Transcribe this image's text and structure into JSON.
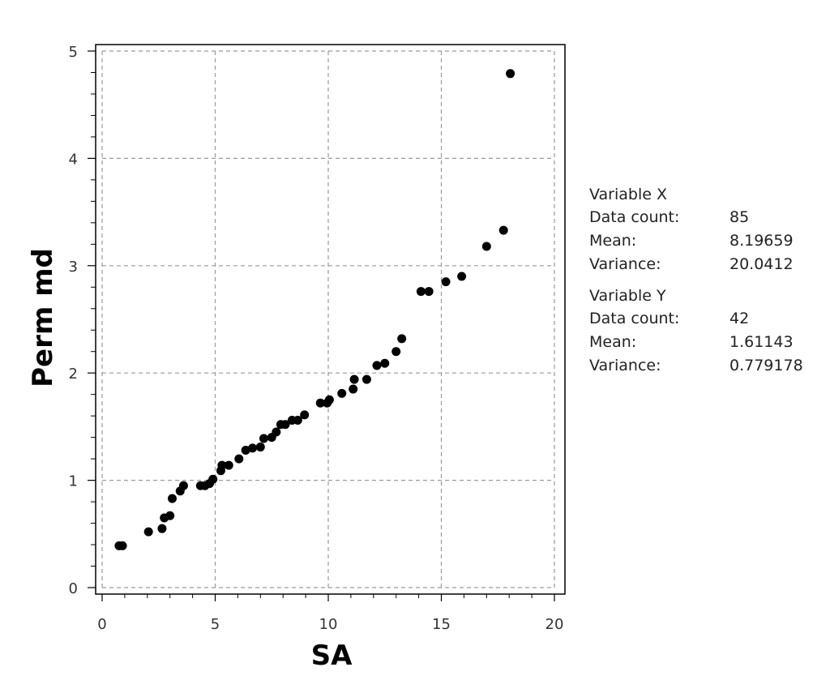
{
  "chart_data": {
    "type": "scatter",
    "xlabel": "SA",
    "ylabel": "Perm md",
    "xlim": [
      0,
      20
    ],
    "ylim": [
      0,
      5
    ],
    "x_ticks": [
      "0",
      "5",
      "10",
      "15",
      "20"
    ],
    "y_ticks": [
      "0",
      "1",
      "2",
      "3",
      "4",
      "5"
    ],
    "grid": true,
    "points": [
      {
        "x": 0.75,
        "y": 0.39
      },
      {
        "x": 0.9,
        "y": 0.39
      },
      {
        "x": 2.05,
        "y": 0.52
      },
      {
        "x": 2.65,
        "y": 0.55
      },
      {
        "x": 2.75,
        "y": 0.65
      },
      {
        "x": 3.0,
        "y": 0.67
      },
      {
        "x": 3.1,
        "y": 0.83
      },
      {
        "x": 3.45,
        "y": 0.9
      },
      {
        "x": 3.6,
        "y": 0.95
      },
      {
        "x": 4.35,
        "y": 0.95
      },
      {
        "x": 4.55,
        "y": 0.95
      },
      {
        "x": 4.75,
        "y": 0.97
      },
      {
        "x": 4.9,
        "y": 1.01
      },
      {
        "x": 5.25,
        "y": 1.09
      },
      {
        "x": 5.3,
        "y": 1.14
      },
      {
        "x": 5.6,
        "y": 1.14
      },
      {
        "x": 6.05,
        "y": 1.2
      },
      {
        "x": 6.35,
        "y": 1.28
      },
      {
        "x": 6.65,
        "y": 1.3
      },
      {
        "x": 7.0,
        "y": 1.31
      },
      {
        "x": 7.15,
        "y": 1.39
      },
      {
        "x": 7.5,
        "y": 1.4
      },
      {
        "x": 7.7,
        "y": 1.45
      },
      {
        "x": 7.9,
        "y": 1.52
      },
      {
        "x": 8.1,
        "y": 1.52
      },
      {
        "x": 8.4,
        "y": 1.56
      },
      {
        "x": 8.65,
        "y": 1.56
      },
      {
        "x": 8.95,
        "y": 1.61
      },
      {
        "x": 9.65,
        "y": 1.72
      },
      {
        "x": 9.95,
        "y": 1.72
      },
      {
        "x": 10.05,
        "y": 1.75
      },
      {
        "x": 10.6,
        "y": 1.81
      },
      {
        "x": 11.1,
        "y": 1.85
      },
      {
        "x": 11.15,
        "y": 1.94
      },
      {
        "x": 11.7,
        "y": 1.94
      },
      {
        "x": 12.15,
        "y": 2.07
      },
      {
        "x": 12.5,
        "y": 2.09
      },
      {
        "x": 13.0,
        "y": 2.2
      },
      {
        "x": 13.25,
        "y": 2.32
      },
      {
        "x": 14.1,
        "y": 2.76
      },
      {
        "x": 14.45,
        "y": 2.76
      },
      {
        "x": 15.2,
        "y": 2.85
      },
      {
        "x": 15.9,
        "y": 2.9
      },
      {
        "x": 17.0,
        "y": 3.18
      },
      {
        "x": 17.75,
        "y": 3.33
      },
      {
        "x": 18.05,
        "y": 4.79
      }
    ]
  },
  "stats": {
    "variable_x": {
      "title": "Variable X",
      "rows": [
        {
          "label": "Data count:",
          "value": "85"
        },
        {
          "label": "Mean:",
          "value": "8.19659"
        },
        {
          "label": "Variance:",
          "value": "20.0412"
        }
      ]
    },
    "variable_y": {
      "title": "Variable Y",
      "rows": [
        {
          "label": "Data count:",
          "value": "42"
        },
        {
          "label": "Mean:",
          "value": "1.61143"
        },
        {
          "label": "Variance:",
          "value": "0.779178"
        }
      ]
    }
  }
}
